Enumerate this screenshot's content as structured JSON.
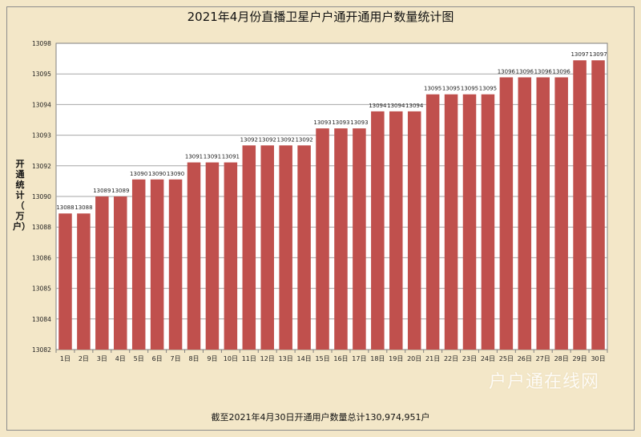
{
  "chart_data": {
    "type": "bar",
    "title": "2021年4月份直播卫星户户通开通用户数量统计图",
    "ylabel": "开通统计（万户）",
    "footnote": "截至2021年4月30日开通用户数量总计130,974,951户",
    "watermark": "户户通在线网",
    "yticks": [
      "13082",
      "13084",
      "13085",
      "13086",
      "13088",
      "13090",
      "13092",
      "13093",
      "13094",
      "13095",
      "13098"
    ],
    "categories": [
      "1日",
      "2日",
      "3日",
      "4日",
      "5日",
      "6日",
      "7日",
      "8日",
      "9日",
      "10日",
      "11日",
      "12日",
      "13日",
      "14日",
      "15日",
      "16日",
      "17日",
      "18日",
      "19日",
      "20日",
      "21日",
      "22日",
      "23日",
      "24日",
      "25日",
      "26日",
      "27日",
      "28日",
      "29日",
      "30日"
    ],
    "values": [
      13088,
      13088,
      13089,
      13089,
      13090,
      13090,
      13090,
      13091,
      13091,
      13091,
      13092,
      13092,
      13092,
      13092,
      13093,
      13093,
      13093,
      13094,
      13094,
      13094,
      13095,
      13095,
      13095,
      13095,
      13096,
      13096,
      13096,
      13096,
      13097,
      13097
    ],
    "labels": [
      "13088",
      "13088",
      "13089",
      "13089",
      "13090",
      "13090",
      "13090",
      "13091",
      "13091",
      "13091",
      "13092",
      "13092",
      "13092",
      "13092",
      "13093",
      "13093",
      "13093",
      "13094",
      "13094",
      "13094",
      "13095",
      "13095",
      "13095",
      "13095",
      "13096",
      "13096",
      "13096",
      "13096",
      "13097",
      "13097"
    ],
    "ylim": [
      13080,
      13098
    ],
    "grid": true,
    "bar_color": "#c0504d",
    "plot_bg": "#ffffff"
  }
}
